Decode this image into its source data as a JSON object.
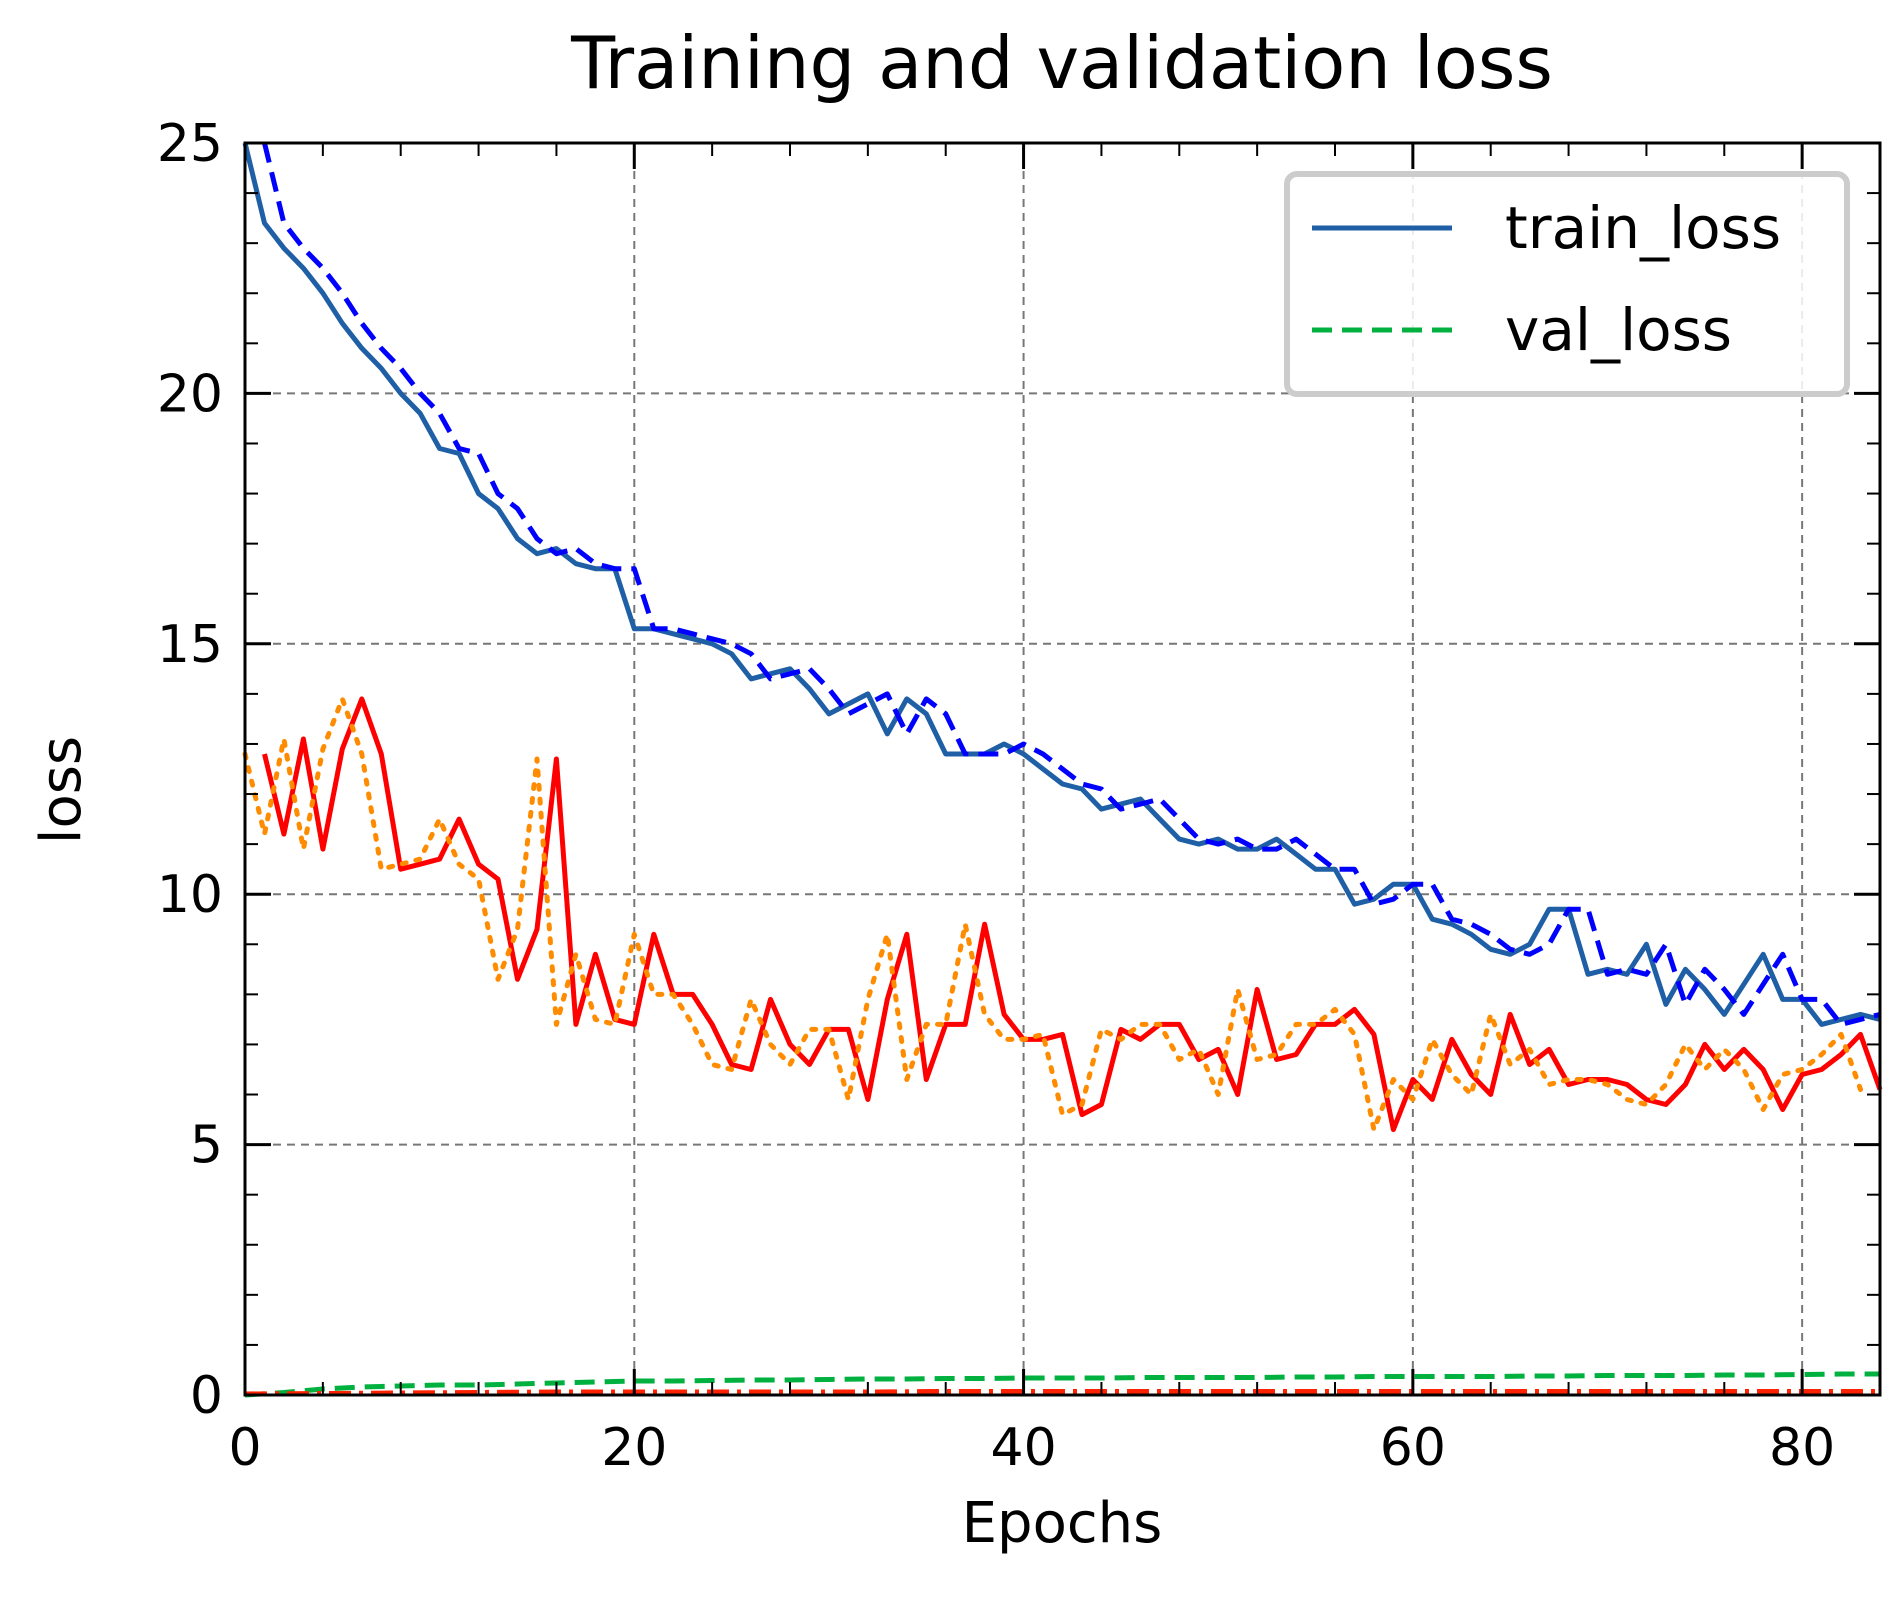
{
  "chart_data": {
    "type": "line",
    "title": "Training and validation loss",
    "xlabel": "Epochs",
    "ylabel": "loss",
    "xlim": [
      0,
      84
    ],
    "ylim": [
      0,
      25
    ],
    "xticks": [
      0,
      20,
      40,
      60,
      80
    ],
    "yticks": [
      0,
      5,
      10,
      15,
      20,
      25
    ],
    "grid": true,
    "legend_position": "top-right",
    "legend_entries": [
      "train_loss",
      "val_loss"
    ],
    "series": [
      {
        "name": "train_loss",
        "color": "#1f5fa6",
        "style": "solid",
        "x": [
          0,
          1,
          2,
          3,
          4,
          5,
          6,
          7,
          8,
          9,
          10,
          11,
          12,
          13,
          14,
          15,
          16,
          17,
          18,
          19,
          20,
          21,
          22,
          23,
          24,
          25,
          26,
          27,
          28,
          29,
          30,
          31,
          32,
          33,
          34,
          35,
          36,
          37,
          38,
          39,
          40,
          41,
          42,
          43,
          44,
          45,
          46,
          47,
          48,
          49,
          50,
          51,
          52,
          53,
          54,
          55,
          56,
          57,
          58,
          59,
          60,
          61,
          62,
          63,
          64,
          65,
          66,
          67,
          68,
          69,
          70,
          71,
          72,
          73,
          74,
          75,
          76,
          77,
          78,
          79,
          80,
          81,
          82,
          83,
          84
        ],
        "y": [
          25.0,
          23.4,
          22.9,
          22.5,
          22.0,
          21.4,
          20.9,
          20.5,
          20.0,
          19.6,
          18.9,
          18.8,
          18.0,
          17.7,
          17.1,
          16.8,
          16.9,
          16.6,
          16.5,
          16.5,
          15.3,
          15.3,
          15.2,
          15.1,
          15.0,
          14.8,
          14.3,
          14.4,
          14.5,
          14.1,
          13.6,
          13.8,
          14.0,
          13.2,
          13.9,
          13.6,
          12.8,
          12.8,
          12.8,
          13.0,
          12.8,
          12.5,
          12.2,
          12.1,
          11.7,
          11.8,
          11.9,
          11.5,
          11.1,
          11.0,
          11.1,
          10.9,
          10.9,
          11.1,
          10.8,
          10.5,
          10.5,
          9.8,
          9.9,
          10.2,
          10.2,
          9.5,
          9.4,
          9.2,
          8.9,
          8.8,
          9.0,
          9.7,
          9.7,
          8.4,
          8.5,
          8.4,
          9.0,
          7.8,
          8.5,
          8.1,
          7.6,
          8.2,
          8.8,
          7.9,
          7.9,
          7.4,
          7.5,
          7.6,
          7.5
        ]
      },
      {
        "name": "val_loss",
        "color": "#00b140",
        "style": "dashed",
        "x": [
          0,
          2,
          4,
          6,
          8,
          10,
          12,
          14,
          16,
          18,
          20,
          22,
          24,
          26,
          28,
          30,
          32,
          34,
          36,
          38,
          40,
          42,
          44,
          46,
          48,
          50,
          52,
          54,
          56,
          58,
          60,
          62,
          64,
          66,
          68,
          70,
          72,
          74,
          76,
          78,
          80,
          82,
          84
        ],
        "y": [
          0.0,
          0.05,
          0.12,
          0.16,
          0.18,
          0.2,
          0.2,
          0.22,
          0.24,
          0.26,
          0.28,
          0.28,
          0.29,
          0.3,
          0.3,
          0.31,
          0.32,
          0.32,
          0.33,
          0.33,
          0.34,
          0.34,
          0.34,
          0.35,
          0.35,
          0.35,
          0.35,
          0.36,
          0.36,
          0.37,
          0.37,
          0.37,
          0.37,
          0.38,
          0.38,
          0.39,
          0.39,
          0.39,
          0.4,
          0.4,
          0.41,
          0.42,
          0.42
        ]
      },
      {
        "color": "#0000ff",
        "style": "dashed",
        "x": [
          1,
          2,
          3,
          4,
          5,
          6,
          7,
          8,
          9,
          10,
          11,
          12,
          13,
          14,
          15,
          16,
          17,
          18,
          19,
          20,
          21,
          22,
          23,
          24,
          25,
          26,
          27,
          28,
          29,
          30,
          31,
          32,
          33,
          34,
          35,
          36,
          37,
          38,
          39,
          40,
          41,
          42,
          43,
          44,
          45,
          46,
          47,
          48,
          49,
          50,
          51,
          52,
          53,
          54,
          55,
          56,
          57,
          58,
          59,
          60,
          61,
          62,
          63,
          64,
          65,
          66,
          67,
          68,
          69,
          70,
          71,
          72,
          73,
          74,
          75,
          76,
          77,
          78,
          79,
          80,
          81,
          82,
          83,
          84
        ],
        "y": [
          25.0,
          23.4,
          22.9,
          22.5,
          22.0,
          21.4,
          20.9,
          20.5,
          20.0,
          19.6,
          18.9,
          18.8,
          18.0,
          17.7,
          17.1,
          16.8,
          16.9,
          16.6,
          16.5,
          16.5,
          15.3,
          15.3,
          15.2,
          15.1,
          15.0,
          14.8,
          14.3,
          14.4,
          14.5,
          14.1,
          13.6,
          13.8,
          14.0,
          13.2,
          13.9,
          13.6,
          12.8,
          12.8,
          12.8,
          13.0,
          12.8,
          12.5,
          12.2,
          12.1,
          11.7,
          11.8,
          11.9,
          11.5,
          11.1,
          11.0,
          11.1,
          10.9,
          10.9,
          11.1,
          10.8,
          10.5,
          10.5,
          9.8,
          9.9,
          10.2,
          10.2,
          9.5,
          9.4,
          9.2,
          8.9,
          8.8,
          9.0,
          9.7,
          9.7,
          8.4,
          8.5,
          8.4,
          9.0,
          7.8,
          8.5,
          8.1,
          7.6,
          8.2,
          8.8,
          7.9,
          7.9,
          7.4,
          7.5,
          7.6
        ]
      },
      {
        "color": "#ff0000",
        "style": "solid",
        "x": [
          1,
          2,
          3,
          4,
          5,
          6,
          7,
          8,
          9,
          10,
          11,
          12,
          13,
          14,
          15,
          16,
          17,
          18,
          19,
          20,
          21,
          22,
          23,
          24,
          25,
          26,
          27,
          28,
          29,
          30,
          31,
          32,
          33,
          34,
          35,
          36,
          37,
          38,
          39,
          40,
          41,
          42,
          43,
          44,
          45,
          46,
          47,
          48,
          49,
          50,
          51,
          52,
          53,
          54,
          55,
          56,
          57,
          58,
          59,
          60,
          61,
          62,
          63,
          64,
          65,
          66,
          67,
          68,
          69,
          70,
          71,
          72,
          73,
          74,
          75,
          76,
          77,
          78,
          79,
          80,
          81,
          82,
          83,
          84
        ],
        "y": [
          12.8,
          11.2,
          13.1,
          10.9,
          12.9,
          13.9,
          12.8,
          10.5,
          10.6,
          10.7,
          11.5,
          10.6,
          10.3,
          8.3,
          9.3,
          12.7,
          7.4,
          8.8,
          7.5,
          7.4,
          9.2,
          8.0,
          8.0,
          7.4,
          6.6,
          6.5,
          7.9,
          7.0,
          6.6,
          7.3,
          7.3,
          5.9,
          7.9,
          9.2,
          6.3,
          7.4,
          7.4,
          9.4,
          7.6,
          7.1,
          7.1,
          7.2,
          5.6,
          5.8,
          7.3,
          7.1,
          7.4,
          7.4,
          6.7,
          6.9,
          6.0,
          8.1,
          6.7,
          6.8,
          7.4,
          7.4,
          7.7,
          7.2,
          5.3,
          6.3,
          5.9,
          7.1,
          6.4,
          6.0,
          7.6,
          6.6,
          6.9,
          6.2,
          6.3,
          6.3,
          6.2,
          5.9,
          5.8,
          6.2,
          7.0,
          6.5,
          6.9,
          6.5,
          5.7,
          6.4,
          6.5,
          6.8,
          7.2,
          6.1
        ]
      },
      {
        "color": "#ff8c00",
        "style": "dotted",
        "x": [
          0,
          1,
          2,
          3,
          4,
          5,
          6,
          7,
          8,
          9,
          10,
          11,
          12,
          13,
          14,
          15,
          16,
          17,
          18,
          19,
          20,
          21,
          22,
          23,
          24,
          25,
          26,
          27,
          28,
          29,
          30,
          31,
          32,
          33,
          34,
          35,
          36,
          37,
          38,
          39,
          40,
          41,
          42,
          43,
          44,
          45,
          46,
          47,
          48,
          49,
          50,
          51,
          52,
          53,
          54,
          55,
          56,
          57,
          58,
          59,
          60,
          61,
          62,
          63,
          64,
          65,
          66,
          67,
          68,
          69,
          70,
          71,
          72,
          73,
          74,
          75,
          76,
          77,
          78,
          79,
          80,
          81,
          82,
          83
        ],
        "y": [
          12.8,
          11.2,
          13.1,
          10.9,
          12.9,
          13.9,
          12.8,
          10.5,
          10.6,
          10.7,
          11.5,
          10.6,
          10.3,
          8.3,
          9.3,
          12.7,
          7.4,
          8.8,
          7.5,
          7.4,
          9.2,
          8.0,
          8.0,
          7.4,
          6.6,
          6.5,
          7.9,
          7.0,
          6.6,
          7.3,
          7.3,
          5.9,
          7.9,
          9.2,
          6.3,
          7.4,
          7.4,
          9.4,
          7.6,
          7.1,
          7.1,
          7.2,
          5.6,
          5.8,
          7.3,
          7.1,
          7.4,
          7.4,
          6.7,
          6.9,
          6.0,
          8.1,
          6.7,
          6.8,
          7.4,
          7.4,
          7.7,
          7.2,
          5.3,
          6.3,
          5.9,
          7.1,
          6.4,
          6.0,
          7.6,
          6.6,
          6.9,
          6.2,
          6.3,
          6.3,
          6.2,
          5.9,
          5.8,
          6.2,
          7.0,
          6.5,
          6.9,
          6.5,
          5.7,
          6.4,
          6.5,
          6.8,
          7.2,
          6.1
        ]
      },
      {
        "color": "#ff2200",
        "style": "dashdot",
        "x": [
          0,
          4,
          8,
          12,
          16,
          20,
          24,
          28,
          32,
          36,
          40,
          44,
          48,
          52,
          56,
          60,
          64,
          68,
          72,
          76,
          80,
          84
        ],
        "y": [
          0.02,
          0.03,
          0.04,
          0.05,
          0.06,
          0.06,
          0.06,
          0.06,
          0.06,
          0.07,
          0.07,
          0.07,
          0.07,
          0.07,
          0.07,
          0.07,
          0.07,
          0.07,
          0.07,
          0.07,
          0.07,
          0.07
        ]
      }
    ]
  }
}
